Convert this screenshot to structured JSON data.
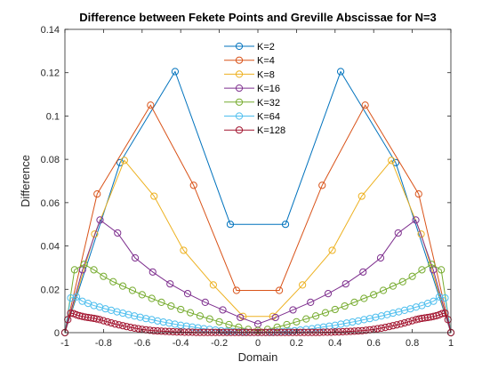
{
  "chart_data": {
    "type": "line",
    "title": "Difference between Fekete Points and Greville Abscissae for N=3",
    "xlabel": "Domain",
    "ylabel": "Difference",
    "xlim": [
      -1,
      1
    ],
    "ylim": [
      0,
      0.14
    ],
    "xticks": [
      "-1",
      "-0.8",
      "-0.6",
      "-0.4",
      "-0.2",
      "0",
      "0.2",
      "0.4",
      "0.6",
      "0.8",
      "1"
    ],
    "yticks": [
      "0",
      "0.02",
      "0.04",
      "0.06",
      "0.08",
      "0.1",
      "0.12",
      "0.14"
    ],
    "legend_position": "top-center",
    "grid": false,
    "series": [
      {
        "name": "K=2",
        "color": "#0072BD",
        "x": [
          -1,
          -0.714,
          -0.429,
          -0.143,
          0.143,
          0.429,
          0.714,
          1
        ],
        "y": [
          0,
          0.0785,
          0.1205,
          0.05,
          0.05,
          0.1205,
          0.0785,
          0
        ]
      },
      {
        "name": "K=4",
        "color": "#D95319",
        "x": [
          -1,
          -0.833,
          -0.556,
          -0.333,
          -0.111,
          0.111,
          0.333,
          0.556,
          0.833,
          1
        ],
        "y": [
          0,
          0.064,
          0.105,
          0.068,
          0.0195,
          0.0195,
          0.068,
          0.105,
          0.064,
          0
        ],
        "note_x_is_estimated": null
      },
      {
        "name": "K=8",
        "color": "#EDB120",
        "x": [
          -1,
          -0.846,
          -0.692,
          -0.538,
          -0.385,
          -0.231,
          -0.077,
          0.077,
          0.231,
          0.385,
          0.538,
          0.692,
          0.846,
          1
        ],
        "y": [
          0,
          0.0455,
          0.0795,
          0.063,
          0.038,
          0.022,
          0.0075,
          0.0075,
          0.022,
          0.038,
          0.063,
          0.0795,
          0.0455,
          0
        ]
      },
      {
        "name": "K=16",
        "color": "#7E2F8E",
        "x": [
          -1,
          -0.909,
          -0.818,
          -0.727,
          -0.636,
          -0.545,
          -0.455,
          -0.364,
          -0.273,
          -0.182,
          -0.091,
          0,
          0.091,
          0.182,
          0.273,
          0.364,
          0.455,
          0.545,
          0.636,
          0.727,
          0.818,
          0.909,
          1
        ],
        "y": [
          0,
          0.029,
          0.052,
          0.046,
          0.0345,
          0.028,
          0.0225,
          0.018,
          0.014,
          0.0105,
          0.007,
          0.004,
          0.007,
          0.0105,
          0.014,
          0.018,
          0.0225,
          0.028,
          0.0345,
          0.046,
          0.052,
          0.029,
          0
        ],
        "note_x_is_estimated": null
      },
      {
        "name": "K=32",
        "color": "#77AC30",
        "x": [
          -1,
          -0.95,
          -0.9,
          -0.85,
          -0.8,
          -0.75,
          -0.7,
          -0.65,
          -0.6,
          -0.55,
          -0.5,
          -0.45,
          -0.4,
          -0.35,
          -0.3,
          -0.25,
          -0.2,
          -0.15,
          -0.1,
          -0.05,
          0,
          0.05,
          0.1,
          0.15,
          0.2,
          0.25,
          0.3,
          0.35,
          0.4,
          0.45,
          0.5,
          0.55,
          0.6,
          0.65,
          0.7,
          0.75,
          0.8,
          0.85,
          0.9,
          0.95,
          1
        ],
        "y": [
          0,
          0.029,
          0.0315,
          0.029,
          0.026,
          0.0235,
          0.0215,
          0.0195,
          0.0175,
          0.0158,
          0.014,
          0.0123,
          0.0107,
          0.0092,
          0.0077,
          0.0063,
          0.005,
          0.0037,
          0.0025,
          0.0015,
          0.001,
          0.0015,
          0.0025,
          0.0037,
          0.005,
          0.0063,
          0.0077,
          0.0092,
          0.0107,
          0.0123,
          0.014,
          0.0158,
          0.0175,
          0.0195,
          0.0215,
          0.0235,
          0.026,
          0.029,
          0.0315,
          0.029,
          0
        ]
      },
      {
        "name": "K=64",
        "color": "#4DBEEE",
        "x": [
          -1,
          -0.97,
          -0.94,
          -0.91,
          -0.88,
          -0.85,
          -0.82,
          -0.79,
          -0.76,
          -0.73,
          -0.7,
          -0.67,
          -0.64,
          -0.61,
          -0.58,
          -0.55,
          -0.52,
          -0.49,
          -0.46,
          -0.43,
          -0.4,
          -0.37,
          -0.34,
          -0.31,
          -0.28,
          -0.25,
          -0.22,
          -0.19,
          -0.16,
          -0.13,
          -0.1,
          -0.07,
          -0.04,
          0,
          0.04,
          0.07,
          0.1,
          0.13,
          0.16,
          0.19,
          0.22,
          0.25,
          0.28,
          0.31,
          0.34,
          0.37,
          0.4,
          0.43,
          0.46,
          0.49,
          0.52,
          0.55,
          0.58,
          0.61,
          0.64,
          0.67,
          0.7,
          0.73,
          0.76,
          0.79,
          0.82,
          0.85,
          0.88,
          0.91,
          0.94,
          0.97,
          1
        ],
        "y": [
          0,
          0.016,
          0.0165,
          0.0145,
          0.0135,
          0.0125,
          0.0118,
          0.011,
          0.0103,
          0.0096,
          0.009,
          0.0083,
          0.0077,
          0.0071,
          0.0065,
          0.006,
          0.0054,
          0.0049,
          0.0044,
          0.0039,
          0.0034,
          0.003,
          0.0026,
          0.0022,
          0.0018,
          0.0015,
          0.0012,
          0.0009,
          0.0007,
          0.0005,
          0.0003,
          0.0002,
          0.0001,
          0.0001,
          0.0001,
          0.0002,
          0.0003,
          0.0005,
          0.0007,
          0.0009,
          0.0012,
          0.0015,
          0.0018,
          0.0022,
          0.0026,
          0.003,
          0.0034,
          0.0039,
          0.0044,
          0.0049,
          0.0054,
          0.006,
          0.0065,
          0.0071,
          0.0077,
          0.0083,
          0.009,
          0.0096,
          0.0103,
          0.011,
          0.0118,
          0.0125,
          0.0135,
          0.0145,
          0.0165,
          0.016,
          0
        ]
      },
      {
        "name": "K=128",
        "color": "#A2142F",
        "x": [
          -1,
          -0.985,
          -0.97,
          -0.955,
          -0.94,
          -0.925,
          -0.91,
          -0.895,
          -0.88,
          -0.865,
          -0.85,
          -0.835,
          -0.82,
          -0.8,
          -0.78,
          -0.76,
          -0.74,
          -0.72,
          -0.7,
          -0.68,
          -0.66,
          -0.64,
          -0.62,
          -0.6,
          -0.58,
          -0.56,
          -0.54,
          -0.52,
          -0.5,
          -0.48,
          -0.46,
          -0.44,
          -0.42,
          -0.4,
          -0.38,
          -0.36,
          -0.34,
          -0.32,
          -0.3,
          -0.28,
          -0.26,
          -0.24,
          -0.22,
          -0.2,
          -0.18,
          -0.16,
          -0.14,
          -0.12,
          -0.1,
          -0.08,
          -0.06,
          -0.04,
          -0.02,
          0,
          0.02,
          0.04,
          0.06,
          0.08,
          0.1,
          0.12,
          0.14,
          0.16,
          0.18,
          0.2,
          0.22,
          0.24,
          0.26,
          0.28,
          0.3,
          0.32,
          0.34,
          0.36,
          0.38,
          0.4,
          0.42,
          0.44,
          0.46,
          0.48,
          0.5,
          0.52,
          0.54,
          0.56,
          0.58,
          0.6,
          0.62,
          0.64,
          0.66,
          0.68,
          0.7,
          0.72,
          0.74,
          0.76,
          0.78,
          0.8,
          0.82,
          0.835,
          0.85,
          0.865,
          0.88,
          0.895,
          0.91,
          0.925,
          0.94,
          0.955,
          0.97,
          0.985,
          1
        ],
        "y": [
          0,
          0.006,
          0.009,
          0.0088,
          0.0082,
          0.0078,
          0.0075,
          0.0072,
          0.007,
          0.0068,
          0.0066,
          0.0063,
          0.006,
          0.0055,
          0.005,
          0.0045,
          0.004,
          0.0036,
          0.0032,
          0.0028,
          0.0024,
          0.0021,
          0.0018,
          0.0015,
          0.0013,
          0.0011,
          0.0009,
          0.0008,
          0.0007,
          0.0006,
          0.0005,
          0.0004,
          0.0003,
          0.0003,
          0.0002,
          0.0002,
          0.0002,
          0.0001,
          0.0001,
          0.0001,
          0.0001,
          0.0001,
          0.0001,
          0.0001,
          0.0001,
          0.0001,
          0.0001,
          0.0001,
          0.0001,
          0.0001,
          0.0001,
          0.0001,
          0.0001,
          0.0001,
          0.0001,
          0.0001,
          0.0001,
          0.0001,
          0.0001,
          0.0001,
          0.0001,
          0.0001,
          0.0001,
          0.0001,
          0.0001,
          0.0001,
          0.0001,
          0.0001,
          0.0001,
          0.0001,
          0.0002,
          0.0002,
          0.0002,
          0.0003,
          0.0003,
          0.0004,
          0.0005,
          0.0006,
          0.0007,
          0.0008,
          0.0009,
          0.0011,
          0.0013,
          0.0015,
          0.0018,
          0.0021,
          0.0024,
          0.0028,
          0.0032,
          0.0036,
          0.004,
          0.0045,
          0.005,
          0.0055,
          0.006,
          0.0063,
          0.0066,
          0.0068,
          0.007,
          0.0072,
          0.0075,
          0.0078,
          0.0082,
          0.0088,
          0.009,
          0.006,
          0
        ]
      }
    ]
  }
}
